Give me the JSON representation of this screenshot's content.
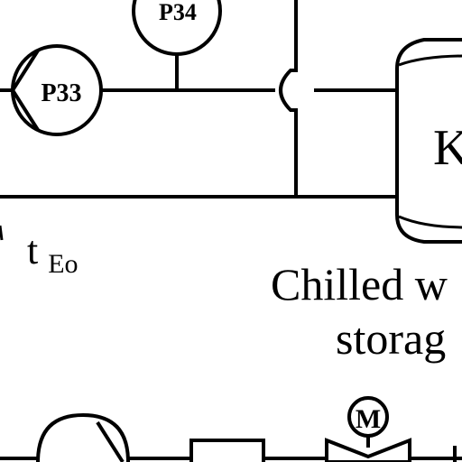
{
  "diagram": {
    "pumps": [
      {
        "id": "p33",
        "label": "P33"
      },
      {
        "id": "p34",
        "label": "P34"
      }
    ],
    "tank": {
      "label": "K",
      "caption_line1": "Chilled w",
      "caption_line2": "storag"
    },
    "temperature_label": {
      "base": "t",
      "subscript": "Eo"
    },
    "motor_label": "M",
    "stroke_color": "#000000",
    "background_color": "#ffffff"
  }
}
